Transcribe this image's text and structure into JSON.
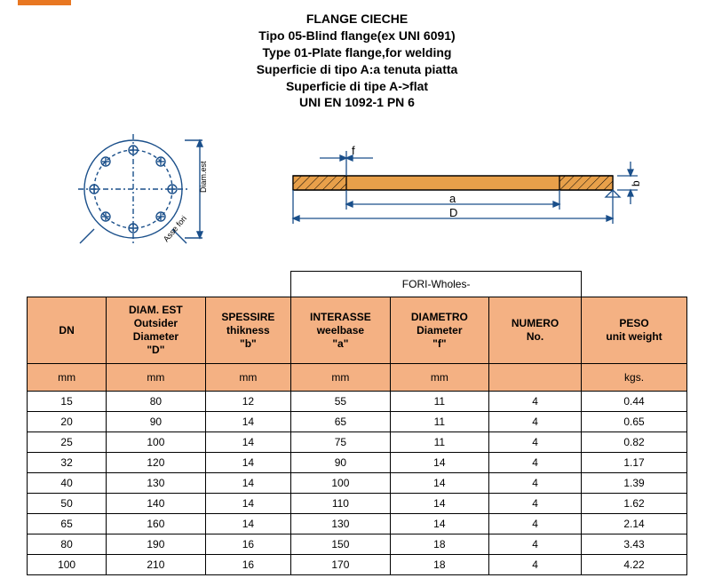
{
  "accent_color": "#e87722",
  "header": {
    "l1": "FLANGE CIECHE",
    "l2": "Tipo  05-Blind flange(ex UNI 6091)",
    "l3": "Type 01-Plate flange,for welding",
    "l4": "Superficie di tipo A:a tenuta piatta",
    "l5": "Superficie di tipe A->flat",
    "l6": "UNI EN 1092-1 PN 6"
  },
  "diagram": {
    "flange_fill": "#e8a04a",
    "line_color": "#1a4f8a",
    "label_f": "f",
    "label_a": "a",
    "label_D": "D",
    "label_b": "b",
    "label_diam": "Diam.est",
    "label_asse": "Asse fori"
  },
  "table": {
    "super_header": "FORI-Wholes-",
    "columns": [
      {
        "h1": "",
        "h2": "DN",
        "h3": "",
        "h4": ""
      },
      {
        "h1": "DIAM. EST",
        "h2": "Outsider",
        "h3": "Diameter",
        "h4": "\"D\""
      },
      {
        "h1": "SPESSIRE",
        "h2": "thikness",
        "h3": "\"b\"",
        "h4": ""
      },
      {
        "h1": "INTERASSE",
        "h2": "weelbase",
        "h3": "\"a\"",
        "h4": ""
      },
      {
        "h1": "DIAMETRO",
        "h2": "Diameter",
        "h3": "\"f\"",
        "h4": ""
      },
      {
        "h1": "NUMERO",
        "h2": "No.",
        "h3": "",
        "h4": ""
      },
      {
        "h1": "PESO",
        "h2": "unit weight",
        "h3": "",
        "h4": ""
      }
    ],
    "units": [
      "mm",
      "mm",
      "mm",
      "mm",
      "mm",
      "",
      "kgs."
    ],
    "rows": [
      [
        "15",
        "80",
        "12",
        "55",
        "11",
        "4",
        "0.44"
      ],
      [
        "20",
        "90",
        "14",
        "65",
        "11",
        "4",
        "0.65"
      ],
      [
        "25",
        "100",
        "14",
        "75",
        "11",
        "4",
        "0.82"
      ],
      [
        "32",
        "120",
        "14",
        "90",
        "14",
        "4",
        "1.17"
      ],
      [
        "40",
        "130",
        "14",
        "100",
        "14",
        "4",
        "1.39"
      ],
      [
        "50",
        "140",
        "14",
        "110",
        "14",
        "4",
        "1.62"
      ],
      [
        "65",
        "160",
        "14",
        "130",
        "14",
        "4",
        "2.14"
      ],
      [
        "80",
        "190",
        "16",
        "150",
        "18",
        "4",
        "3.43"
      ],
      [
        "100",
        "210",
        "16",
        "170",
        "18",
        "4",
        "4.22"
      ]
    ],
    "col_widths": [
      "12%",
      "15%",
      "13%",
      "15%",
      "15%",
      "14%",
      "16%"
    ],
    "header_bg": "#f4b183"
  }
}
